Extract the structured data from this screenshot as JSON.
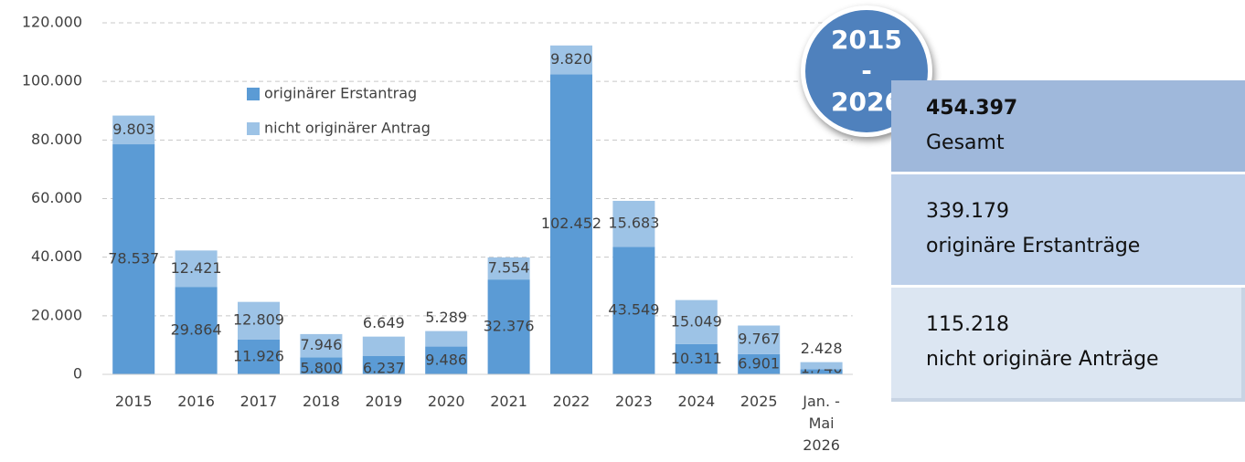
{
  "chart_data": {
    "type": "stacked_bar",
    "categories": [
      "2015",
      "2016",
      "2017",
      "2018",
      "2019",
      "2020",
      "2021",
      "2022",
      "2023",
      "2024",
      "2025",
      "Jan. - Mai 2026"
    ],
    "series": [
      {
        "name": "originärer Erstantrag",
        "color": "#5b9bd5",
        "values": [
          78537,
          29864,
          11926,
          5800,
          6237,
          9486,
          32376,
          102452,
          43549,
          10311,
          6901,
          1740
        ],
        "value_labels": [
          "78.537",
          "29.864",
          "11.926",
          "5.800",
          "6.237",
          "9.486",
          "32.376",
          "102.452",
          "43.549",
          "10.311",
          "6.901",
          "1.740"
        ]
      },
      {
        "name": "nicht originärer Antrag",
        "color": "#9dc3e6",
        "values": [
          9803,
          12421,
          12809,
          7946,
          6649,
          5289,
          7554,
          9820,
          15683,
          15049,
          9767,
          2428
        ],
        "value_labels": [
          "9.803",
          "12.421",
          "12.809",
          "7.946",
          "6.649",
          "5.289",
          "7.554",
          "9.820",
          "15.683",
          "15.049",
          "9.767",
          "2.428"
        ]
      }
    ],
    "ylim": [
      0,
      120000
    ],
    "yticks": [
      0,
      {
        "value": 20000,
        "label": "20.000"
      },
      {
        "value": 40000,
        "label": "40.000"
      },
      {
        "value": 60000,
        "label": "60.000"
      },
      {
        "value": 80000,
        "label": "80.000"
      },
      {
        "value": 100000,
        "label": "100.000"
      },
      {
        "value": 120000,
        "label": "120.000"
      }
    ],
    "grid": true
  },
  "summary": {
    "badge": [
      "2015",
      "-",
      "2026"
    ],
    "boxes": [
      {
        "value": "454.397",
        "label": "Gesamt"
      },
      {
        "value": "339.179",
        "label": "originäre Erstanträge"
      },
      {
        "value": "115.218",
        "label": "nicht originäre Anträge"
      }
    ]
  }
}
